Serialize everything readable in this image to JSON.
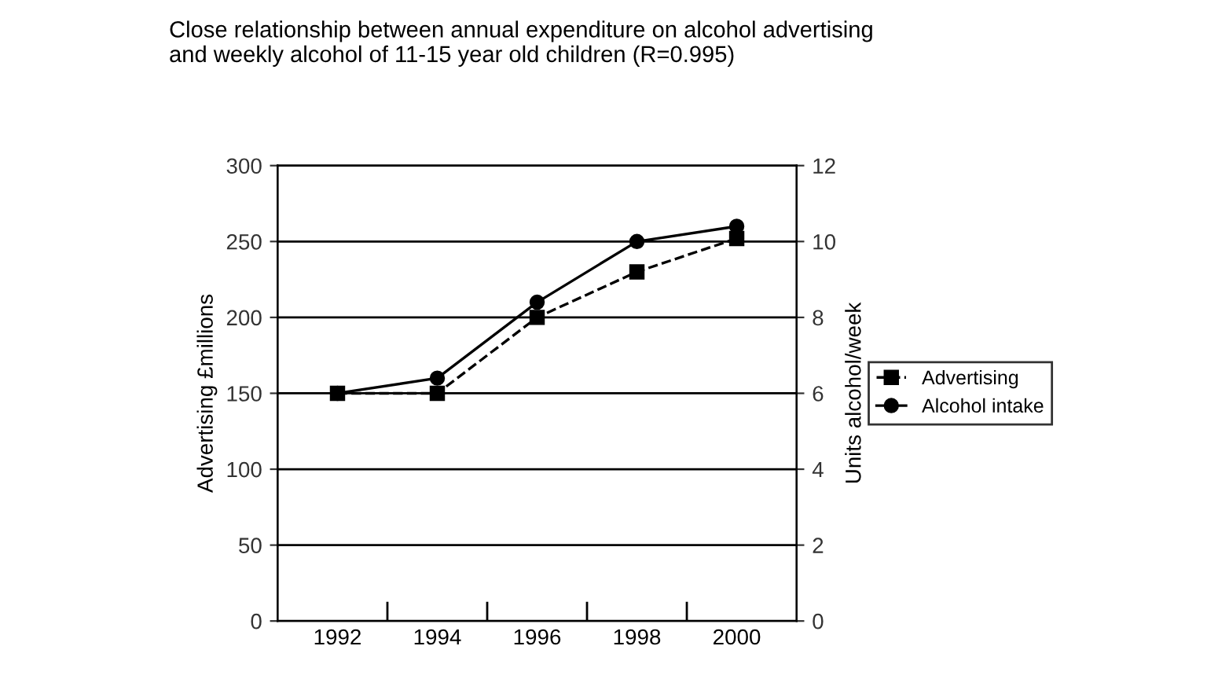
{
  "chart_data": {
    "type": "line",
    "title": "Close relationship between annual expenditure on alcohol advertising\nand weekly alcohol of 11-15 year old children (R=0.995)",
    "categories": [
      "1992",
      "1994",
      "1996",
      "1998",
      "2000"
    ],
    "series": [
      {
        "name": "Advertising",
        "color": "#000000",
        "values": [
          150,
          150,
          200,
          230,
          252
        ],
        "marker": "square",
        "line_style": "dashed"
      },
      {
        "name": "Alcohol intake",
        "color": "#000000",
        "values": [
          6,
          6.4,
          8.4,
          10,
          10.4
        ],
        "marker": "circle",
        "line_style": "solid",
        "axis": "y2"
      }
    ],
    "ylabel": "Advertising £millions",
    "y2label": "Units alcohol/week",
    "ylim": [
      0,
      300
    ],
    "yticks": [
      0,
      50,
      100,
      150,
      200,
      250,
      300
    ],
    "y2lim": [
      0,
      12
    ],
    "y2ticks": [
      0,
      2,
      4,
      6,
      8,
      10,
      12
    ],
    "grid": "y",
    "legend": "right"
  }
}
